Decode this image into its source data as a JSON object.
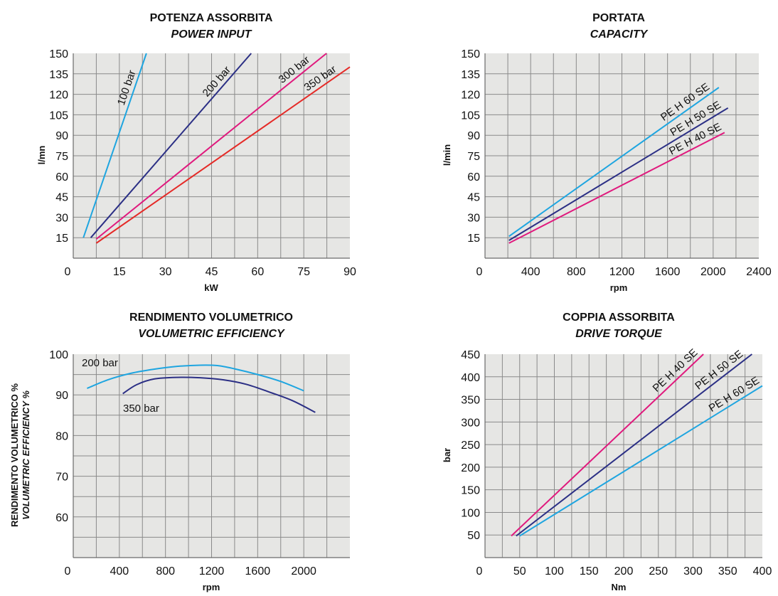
{
  "chart_data": [
    {
      "type": "line",
      "title": "POTENZA ASSORBITA",
      "subtitle": "POWER INPUT",
      "xlabel": "kW",
      "ylabel": "l/mn",
      "xlim": [
        0,
        90
      ],
      "ylim": [
        0,
        150
      ],
      "xticks": [
        0,
        15,
        30,
        45,
        60,
        75,
        90
      ],
      "yticks": [
        15,
        30,
        45,
        60,
        75,
        90,
        105,
        120,
        135,
        150
      ],
      "grid": true,
      "series": [
        {
          "name": "100 bar",
          "color": "#1ea5e0",
          "x": [
            3.3,
            23.8
          ],
          "y": [
            15,
            150
          ]
        },
        {
          "name": "200 bar",
          "color": "#2b2f85",
          "x": [
            5.7,
            57.9
          ],
          "y": [
            15,
            150
          ]
        },
        {
          "name": "300 bar",
          "color": "#e0197d",
          "x": [
            7.5,
            82.4
          ],
          "y": [
            14,
            150
          ]
        },
        {
          "name": "350 bar",
          "color": "#e52a27",
          "x": [
            7.5,
            90
          ],
          "y": [
            11,
            140
          ]
        }
      ]
    },
    {
      "type": "line",
      "title": "PORTATA",
      "subtitle": "CAPACITY",
      "xlabel": "rpm",
      "ylabel": "l/min",
      "xlim": [
        0,
        2400
      ],
      "ylim": [
        0,
        150
      ],
      "xticks": [
        0,
        400,
        800,
        1200,
        1600,
        2000,
        2400
      ],
      "yticks": [
        15,
        30,
        45,
        60,
        75,
        90,
        105,
        120,
        135,
        150
      ],
      "grid": true,
      "series": [
        {
          "name": "PE H 60 SE",
          "color": "#1ea5e0",
          "x": [
            210,
            2050
          ],
          "y": [
            16,
            125
          ]
        },
        {
          "name": "PE H 50 SE",
          "color": "#2b2f85",
          "x": [
            210,
            2130
          ],
          "y": [
            13,
            110
          ]
        },
        {
          "name": "PE H 40 SE",
          "color": "#e0197d",
          "x": [
            210,
            2100
          ],
          "y": [
            11,
            92
          ]
        }
      ]
    },
    {
      "type": "line",
      "title": "RENDIMENTO VOLUMETRICO",
      "subtitle": "VOLUMETRIC EFFICIENCY",
      "xlabel": "rpm",
      "ylabel": "RENDIMENTO VOLUMETRICO %",
      "ylabel2": "VOLUMETRIC EFFICIENCY %",
      "xlim": [
        0,
        2400
      ],
      "ylim": [
        50,
        100
      ],
      "xticks": [
        0,
        400,
        800,
        1200,
        1600,
        2000
      ],
      "yticks": [
        60,
        70,
        80,
        90,
        100
      ],
      "grid": true,
      "series": [
        {
          "name": "200 bar",
          "color": "#1ea5e0",
          "x": [
            120,
            300,
            500,
            700,
            900,
            1100,
            1250,
            1400,
            1600,
            1800,
            2000
          ],
          "y": [
            91.6,
            93.7,
            95.3,
            96.3,
            97.0,
            97.3,
            97.2,
            96.4,
            95.0,
            93.3,
            91.0
          ]
        },
        {
          "name": "350 bar",
          "color": "#2b2f85",
          "x": [
            430,
            550,
            700,
            900,
            1100,
            1300,
            1500,
            1700,
            1900,
            2100
          ],
          "y": [
            90.3,
            92.5,
            93.9,
            94.3,
            94.2,
            93.7,
            92.6,
            90.7,
            88.6,
            85.7
          ]
        }
      ]
    },
    {
      "type": "line",
      "title": "COPPIA ASSORBITA",
      "subtitle": "DRIVE TORQUE",
      "xlabel": "Nm",
      "ylabel": "bar",
      "xlim": [
        0,
        400
      ],
      "ylim": [
        0,
        450
      ],
      "xticks": [
        0,
        50,
        100,
        150,
        200,
        250,
        300,
        350,
        400
      ],
      "yticks": [
        50,
        100,
        150,
        200,
        250,
        300,
        350,
        400,
        450
      ],
      "grid": true,
      "series": [
        {
          "name": "PE H 40 SE",
          "color": "#e0197d",
          "x": [
            38,
            315
          ],
          "y": [
            48,
            450
          ]
        },
        {
          "name": "PE H 50 SE",
          "color": "#2b2f85",
          "x": [
            45,
            385
          ],
          "y": [
            48,
            450
          ]
        },
        {
          "name": "PE H 60 SE",
          "color": "#1ea5e0",
          "x": [
            50,
            400
          ],
          "y": [
            48,
            380
          ]
        }
      ]
    }
  ]
}
